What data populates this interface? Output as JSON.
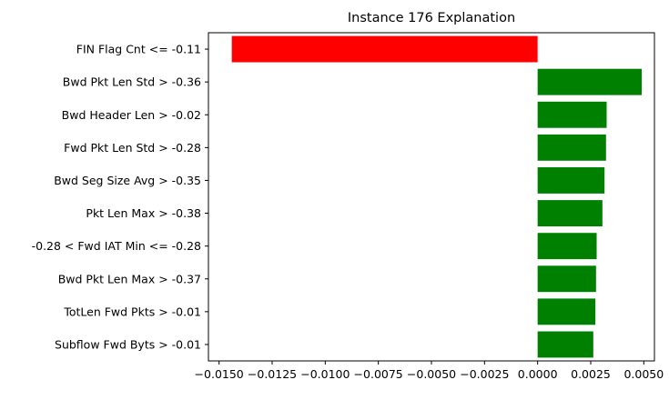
{
  "chart_data": {
    "type": "bar",
    "orientation": "horizontal",
    "title": "Instance 176 Explanation",
    "xlabel": "",
    "ylabel": "",
    "xlim": [
      -0.0155,
      0.0055
    ],
    "grid": false,
    "legend": "none",
    "x_ticks": [
      -0.015,
      -0.0125,
      -0.01,
      -0.0075,
      -0.005,
      -0.0025,
      0.0,
      0.0025,
      0.005
    ],
    "x_tick_labels": [
      "−0.0150",
      "−0.0125",
      "−0.0100",
      "−0.0075",
      "−0.0050",
      "−0.0025",
      "0.0000",
      "0.0025",
      "0.0050"
    ],
    "categories": [
      "FIN Flag Cnt <= -0.11",
      "Bwd Pkt Len Std > -0.36",
      "Bwd Header Len > -0.02",
      "Fwd Pkt Len Std > -0.28",
      "Bwd Seg Size Avg > -0.35",
      "Pkt Len Max > -0.38",
      "-0.28 < Fwd IAT Min <= -0.28",
      "Bwd Pkt Len Max > -0.37",
      "TotLen Fwd Pkts > -0.01",
      "Subflow Fwd Byts > -0.01"
    ],
    "values": [
      -0.0144,
      0.0049,
      0.00325,
      0.00322,
      0.00315,
      0.00305,
      0.00278,
      0.00275,
      0.00272,
      0.00262
    ],
    "colors": {
      "positive": "#008000",
      "negative": "#ff0000"
    }
  }
}
